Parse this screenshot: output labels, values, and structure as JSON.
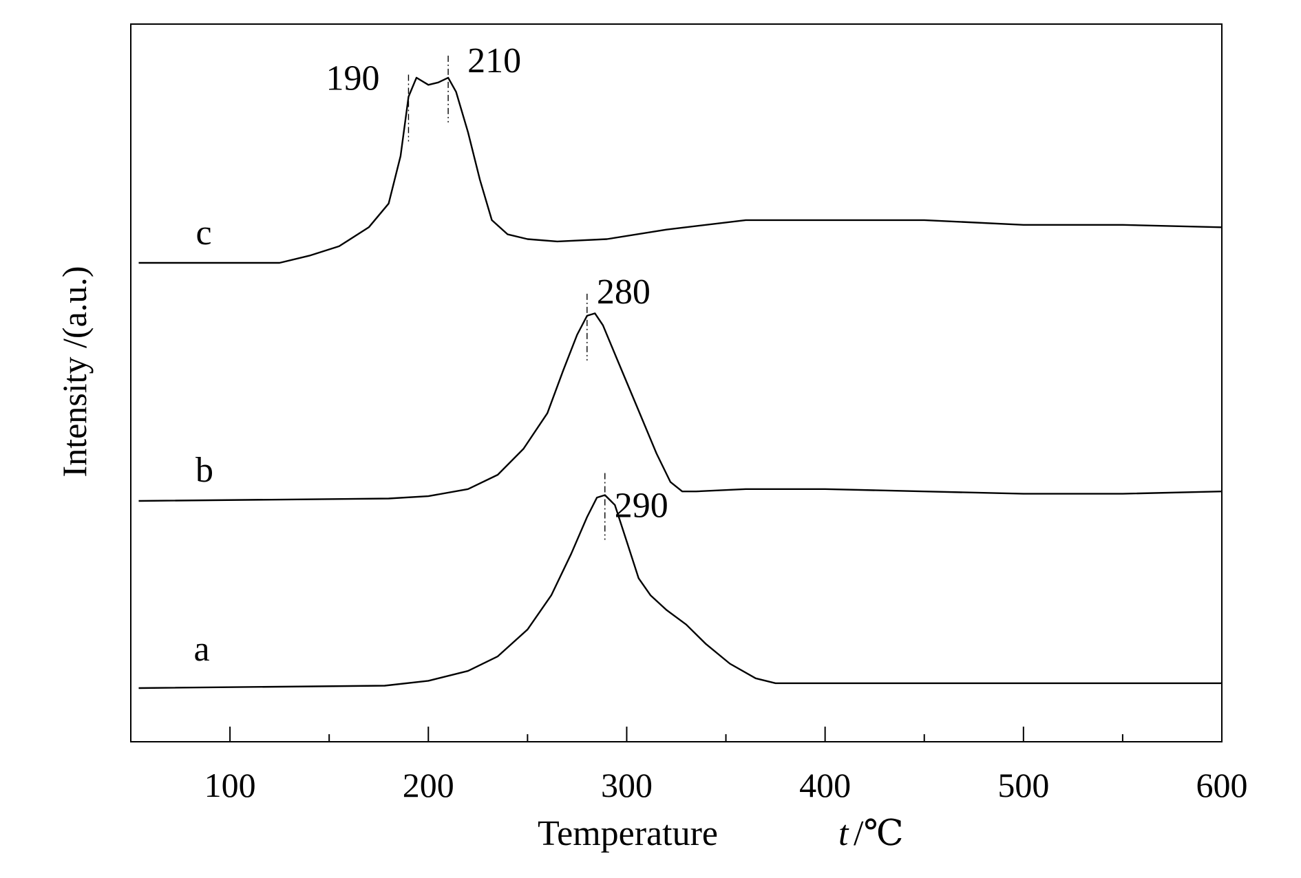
{
  "chart_data": {
    "type": "line",
    "title": "",
    "xlabel": "Temperature",
    "xlabel_symbol": "t",
    "xlabel_unit": "/℃",
    "ylabel": "Intensity /(a.u.)",
    "xlim": [
      50,
      600
    ],
    "xticks": [
      100,
      200,
      300,
      400,
      500,
      600
    ],
    "xtick_labels": [
      "100",
      "200",
      "300",
      "400",
      "500",
      "600"
    ],
    "minor_xticks": [
      150,
      250,
      350,
      450,
      550
    ],
    "grid": false,
    "legend": "none",
    "colors": {
      "line": "#000000",
      "marker": "#000000",
      "background": "#ffffff"
    },
    "series": [
      {
        "name": "a",
        "x": [
          54,
          178,
          200,
          220,
          235,
          250,
          262,
          272,
          280,
          285,
          289,
          294,
          300,
          306,
          312,
          320,
          330,
          340,
          352,
          365,
          375,
          400,
          500,
          600
        ],
        "y": [
          0.0,
          0.01,
          0.03,
          0.07,
          0.13,
          0.24,
          0.38,
          0.55,
          0.7,
          0.78,
          0.79,
          0.75,
          0.6,
          0.45,
          0.38,
          0.32,
          0.26,
          0.18,
          0.1,
          0.04,
          0.02,
          0.02,
          0.02,
          0.02
        ]
      },
      {
        "name": "b",
        "x": [
          54,
          180,
          200,
          220,
          235,
          248,
          260,
          268,
          275,
          280,
          284,
          288,
          295,
          305,
          315,
          322,
          328,
          335,
          360,
          400,
          450,
          500,
          550,
          600
        ],
        "y": [
          0.0,
          0.01,
          0.02,
          0.05,
          0.11,
          0.22,
          0.37,
          0.55,
          0.7,
          0.78,
          0.79,
          0.74,
          0.6,
          0.4,
          0.2,
          0.08,
          0.04,
          0.04,
          0.05,
          0.05,
          0.04,
          0.03,
          0.03,
          0.04
        ]
      },
      {
        "name": "c",
        "x": [
          54,
          125,
          140,
          155,
          170,
          180,
          186,
          190,
          194,
          200,
          205,
          210,
          214,
          220,
          226,
          232,
          240,
          250,
          265,
          290,
          320,
          360,
          450,
          500,
          550,
          600
        ],
        "y": [
          0.0,
          0.0,
          0.03,
          0.07,
          0.15,
          0.25,
          0.45,
          0.7,
          0.78,
          0.75,
          0.76,
          0.78,
          0.72,
          0.55,
          0.35,
          0.18,
          0.12,
          0.1,
          0.09,
          0.1,
          0.14,
          0.18,
          0.18,
          0.16,
          0.16,
          0.15
        ]
      }
    ],
    "annotations": [
      {
        "series": "c",
        "x": 190,
        "label": "190"
      },
      {
        "series": "c",
        "x": 210,
        "label": "210"
      },
      {
        "series": "b",
        "x": 280,
        "label": "280"
      },
      {
        "series": "a",
        "x": 289,
        "label": "290"
      }
    ]
  }
}
